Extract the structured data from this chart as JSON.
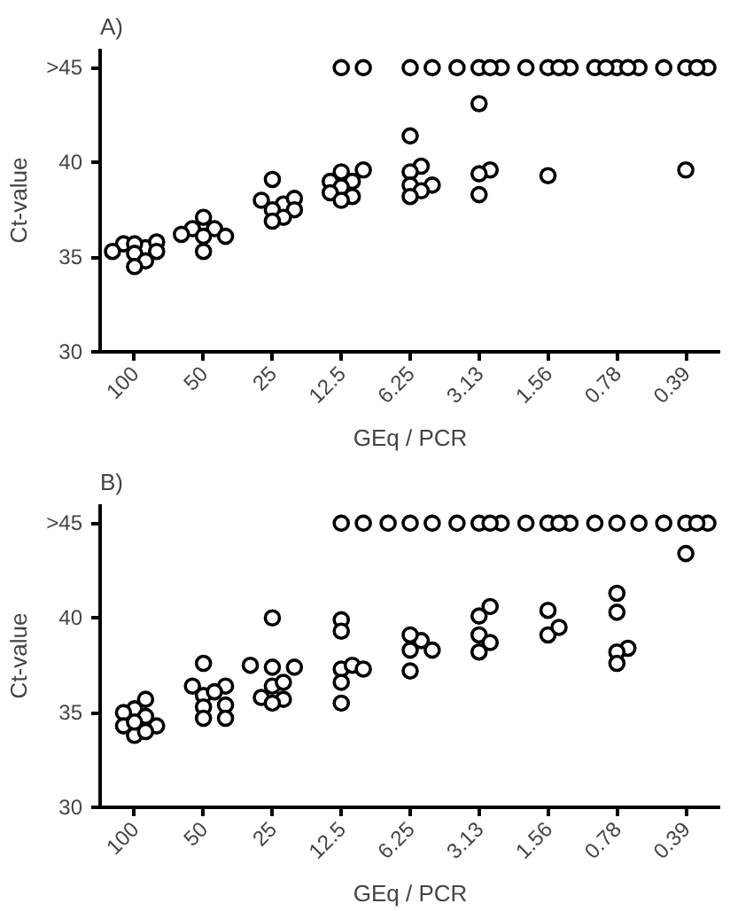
{
  "chart_data": [
    {
      "type": "scatter",
      "title": "A)",
      "xlabel": "GEq / PCR",
      "ylabel": "Ct-value",
      "ylim": [
        30,
        46
      ],
      "categories": [
        "100",
        "50",
        "25",
        "12.5",
        "6.25",
        "3.13",
        "1.56",
        "0.78",
        "0.39"
      ],
      "yticks": [
        30,
        35,
        40,
        {
          "value": 45,
          "label": ">45"
        }
      ],
      "marker": "circle",
      "series": [
        {
          "color": "#000000",
          "x": [
            "100",
            "100",
            "100",
            "100",
            "100",
            "100",
            "100",
            "100",
            "100",
            "50",
            "50",
            "50",
            "50",
            "50",
            "50",
            "50",
            "25",
            "25",
            "25",
            "25",
            "25",
            "25",
            "25",
            "25",
            "12.5",
            "12.5",
            "12.5",
            "12.5",
            "12.5",
            "12.5",
            "12.5",
            "12.5",
            "12.5",
            "12.5",
            "6.25",
            "6.25",
            "6.25",
            "6.25",
            "6.25",
            "6.25",
            "6.25",
            "6.25",
            "6.25",
            "3.13",
            "3.13",
            "3.13",
            "3.13",
            "3.13",
            "3.13",
            "3.13",
            "3.13",
            "1.56",
            "1.56",
            "1.56",
            "1.56",
            "1.56",
            "0.78",
            "0.78",
            "0.78",
            "0.78",
            "0.78",
            "0.39",
            "0.39",
            "0.39",
            "0.39",
            "0.39"
          ],
          "values": [
            35.7,
            35.5,
            35.7,
            35.8,
            35.3,
            35.3,
            35.2,
            34.8,
            34.5,
            37.1,
            36.5,
            36.5,
            36.1,
            36.1,
            36.2,
            35.3,
            39.1,
            38.0,
            37.8,
            38.1,
            37.5,
            37.5,
            37.1,
            36.9,
            39.5,
            39.6,
            39.0,
            39.0,
            38.7,
            38.4,
            38.2,
            38.0,
            45,
            45,
            41.4,
            39.8,
            39.5,
            38.8,
            38.8,
            38.5,
            38.2,
            45,
            45,
            43.1,
            39.6,
            39.4,
            38.3,
            45,
            45,
            45,
            45,
            39.3,
            45,
            45,
            45,
            45,
            45,
            45,
            45,
            45,
            45,
            39.6,
            45,
            45,
            45,
            45
          ]
        }
      ]
    },
    {
      "type": "scatter",
      "title": "B)",
      "xlabel": "GEq / PCR",
      "ylabel": "Ct-value",
      "ylim": [
        30,
        46
      ],
      "categories": [
        "100",
        "50",
        "25",
        "12.5",
        "6.25",
        "3.13",
        "1.56",
        "0.78",
        "0.39"
      ],
      "yticks": [
        30,
        35,
        40,
        {
          "value": 45,
          "label": ">45"
        }
      ],
      "marker": "circle",
      "series": [
        {
          "color": "#000000",
          "x": [
            "100",
            "100",
            "100",
            "100",
            "100",
            "100",
            "100",
            "100",
            "100",
            "50",
            "50",
            "50",
            "50",
            "50",
            "50",
            "50",
            "50",
            "50",
            "25",
            "25",
            "25",
            "25",
            "25",
            "25",
            "25",
            "25",
            "25",
            "12.5",
            "12.5",
            "12.5",
            "12.5",
            "12.5",
            "12.5",
            "12.5",
            "12.5",
            "12.5",
            "6.25",
            "6.25",
            "6.25",
            "6.25",
            "6.25",
            "6.25",
            "6.25",
            "6.25",
            "3.13",
            "3.13",
            "3.13",
            "3.13",
            "3.13",
            "3.13",
            "3.13",
            "3.13",
            "3.13",
            "1.56",
            "1.56",
            "1.56",
            "1.56",
            "1.56",
            "1.56",
            "1.56",
            "0.78",
            "0.78",
            "0.78",
            "0.78",
            "0.78",
            "0.78",
            "0.78",
            "0.78",
            "0.39",
            "0.39",
            "0.39",
            "0.39",
            "0.39"
          ],
          "values": [
            35.7,
            35.2,
            35.0,
            34.8,
            34.3,
            34.3,
            33.8,
            34.5,
            34.0,
            37.6,
            36.4,
            36.4,
            35.9,
            36.1,
            35.3,
            35.4,
            34.7,
            34.7,
            40.0,
            37.4,
            37.5,
            37.4,
            36.4,
            36.6,
            35.7,
            35.8,
            35.5,
            39.9,
            39.3,
            37.3,
            37.5,
            37.3,
            36.6,
            35.5,
            45,
            45,
            38.8,
            38.3,
            38.3,
            39.1,
            37.2,
            45,
            45,
            45,
            40.6,
            40.1,
            39.1,
            38.2,
            38.7,
            45,
            45,
            45,
            45,
            40.4,
            39.1,
            39.5,
            45,
            45,
            45,
            45,
            41.3,
            40.3,
            38.4,
            38.2,
            37.6,
            45,
            45,
            45,
            43.4,
            45,
            45,
            45,
            45
          ]
        }
      ]
    }
  ]
}
